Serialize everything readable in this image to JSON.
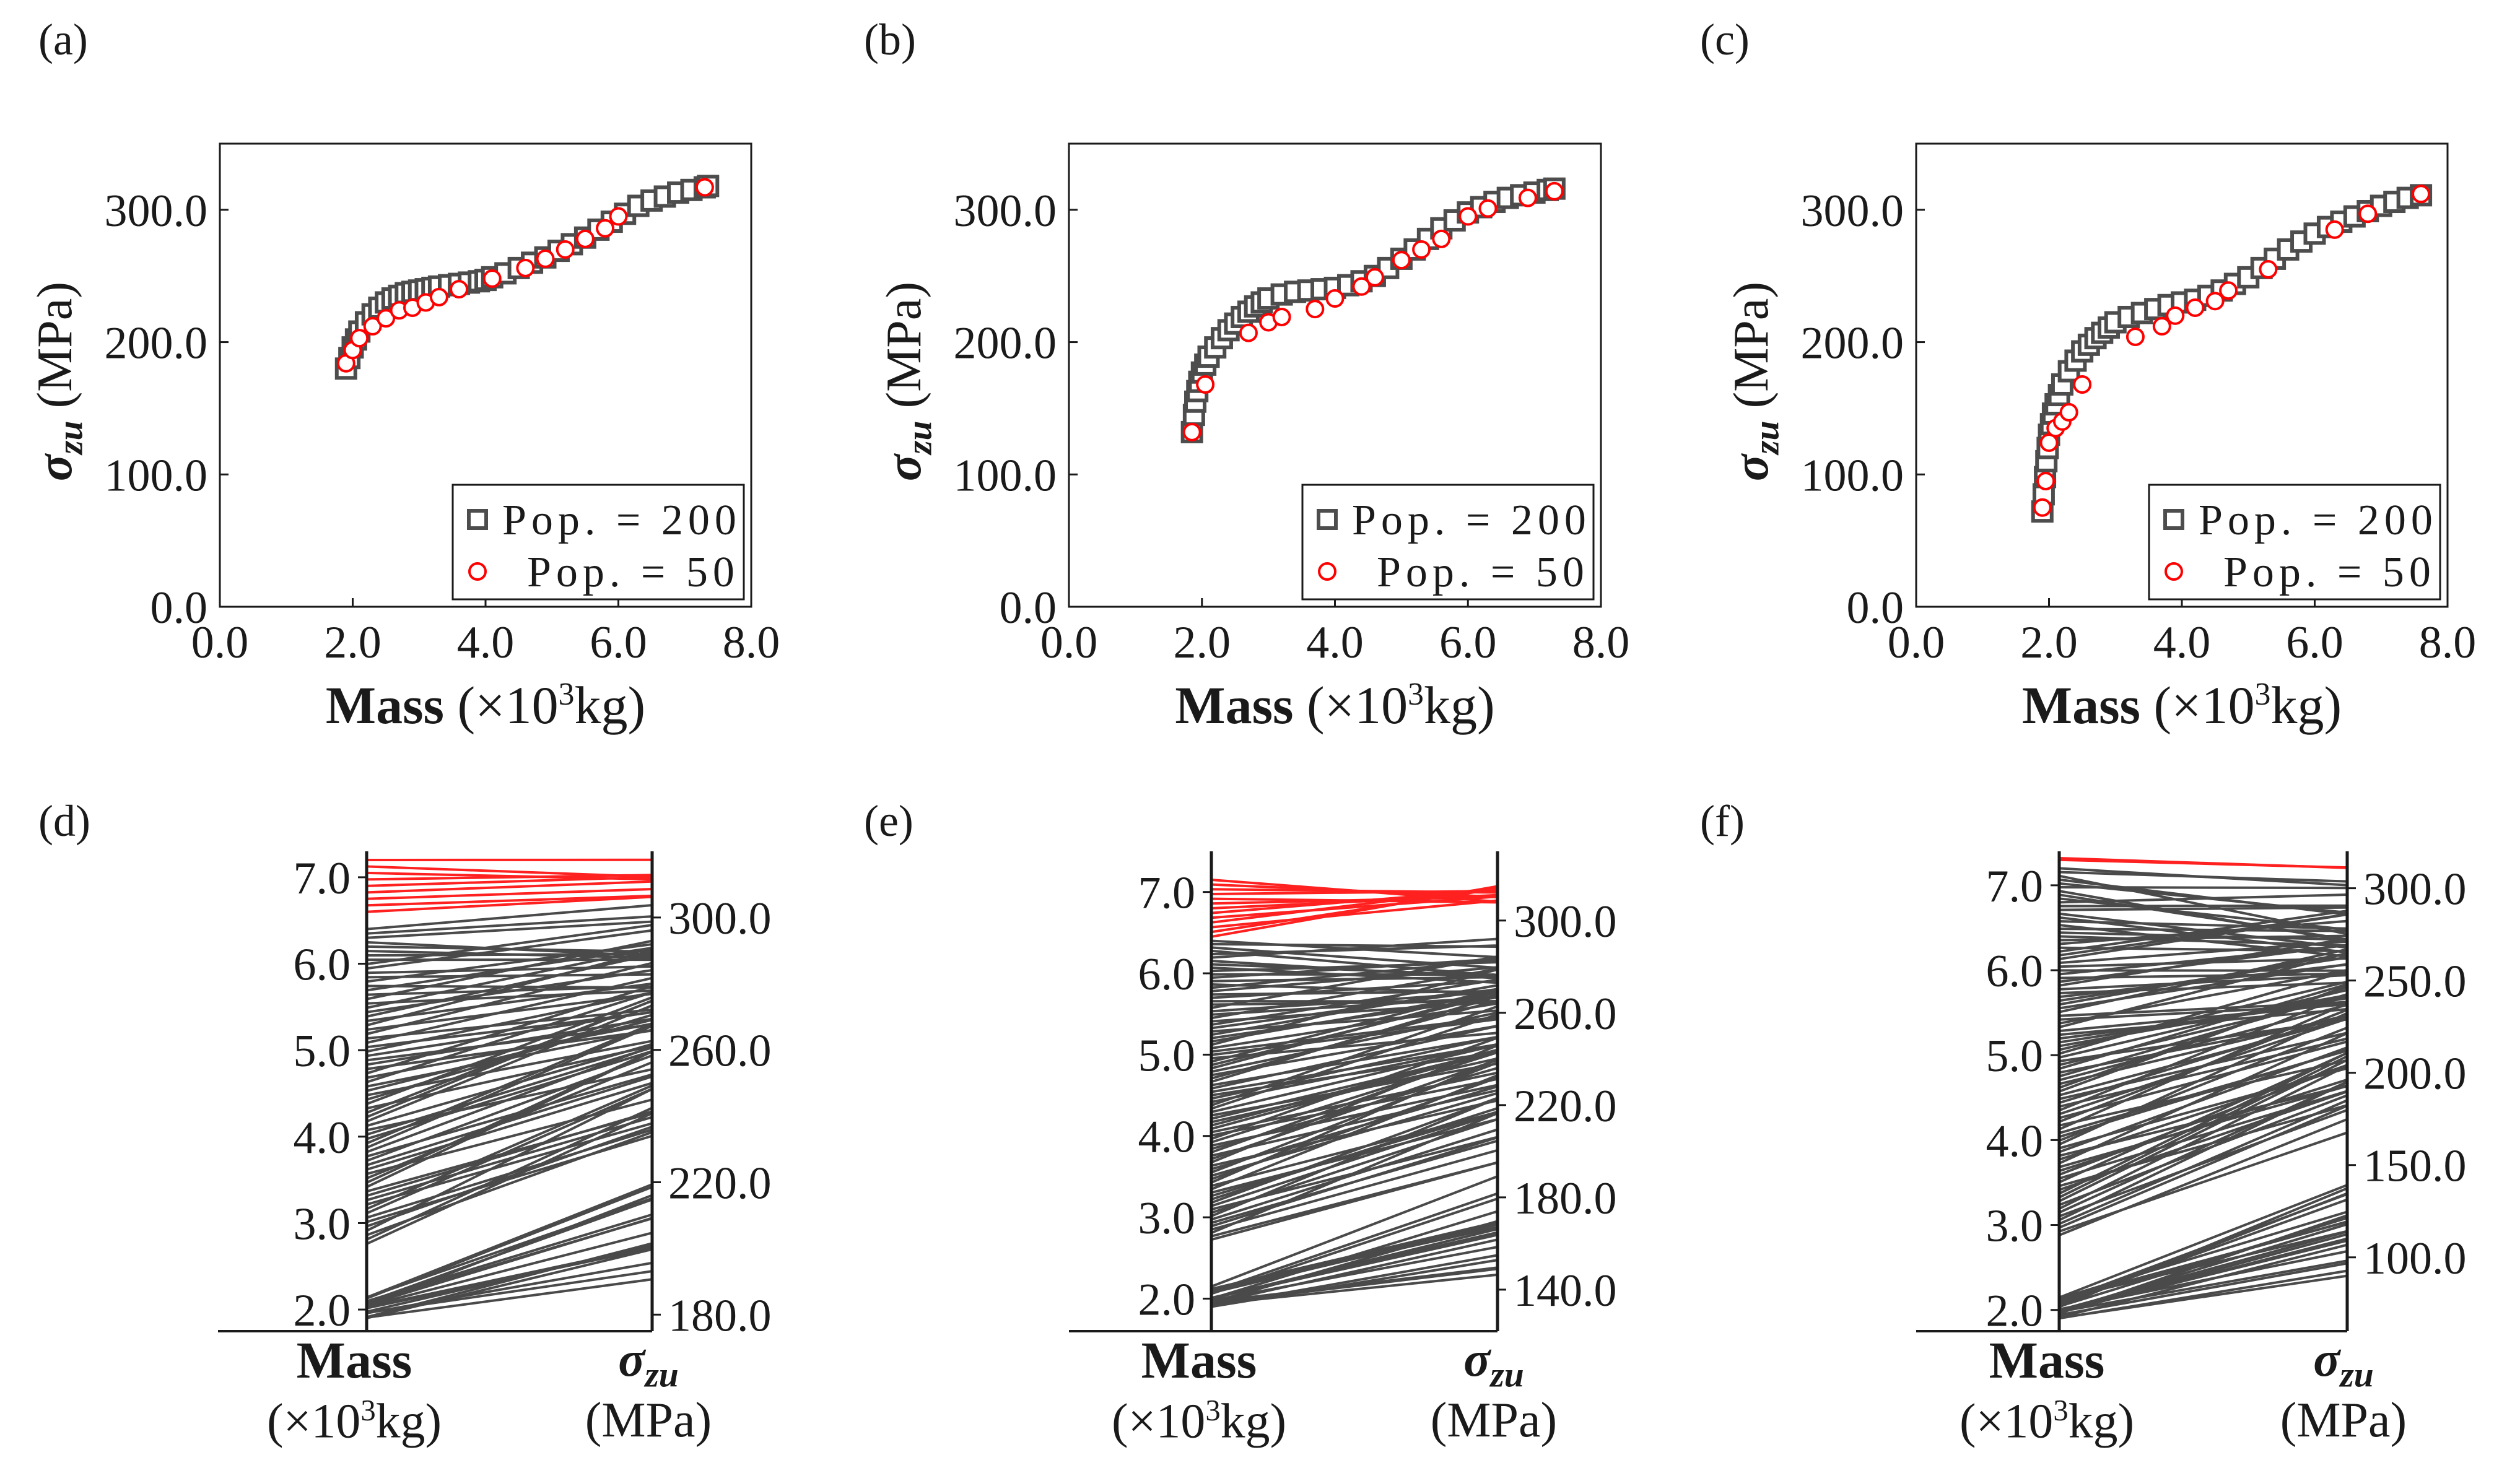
{
  "figure": {
    "colors": {
      "pop200": "#4d4d4d",
      "pop50": "#ff0000",
      "axis": "#1a1a1a",
      "pareto": "#ff2020",
      "lines": "#4a4a4a"
    }
  },
  "chart_data": [
    {
      "id": "a",
      "panel_label": "(a)",
      "type": "scatter",
      "xlabel_bold": "Mass",
      "xlabel_unit": "(×10³kg)",
      "ylabel_symbol": "σzu",
      "ylabel_unit": "(MPa)",
      "xlim": [
        0.0,
        8.0
      ],
      "ylim": [
        0.0,
        350.0
      ],
      "xticks": [
        "0.0",
        "2.0",
        "4.0",
        "6.0",
        "8.0"
      ],
      "yticks": [
        "0.0",
        "100.0",
        "200.0",
        "300.0"
      ],
      "legend_position": "bottom-right",
      "series": [
        {
          "name": "Pop. = 200",
          "marker": "square",
          "x": [
            1.9,
            1.95,
            2.0,
            2.05,
            2.1,
            2.2,
            2.3,
            2.4,
            2.5,
            2.6,
            2.7,
            2.8,
            2.9,
            3.0,
            3.1,
            3.2,
            3.3,
            3.45,
            3.6,
            3.75,
            3.9,
            4.0,
            4.1,
            4.3,
            4.5,
            4.7,
            4.9,
            5.1,
            5.3,
            5.5,
            5.7,
            5.9,
            6.1,
            6.3,
            6.5,
            6.7,
            6.9,
            7.1,
            7.3,
            7.35
          ],
          "y": [
            180,
            188,
            196,
            202,
            208,
            215,
            221,
            226,
            230,
            233,
            235,
            237,
            238,
            239,
            240,
            241,
            242,
            243,
            244,
            245,
            246,
            247,
            249,
            252,
            256,
            260,
            264,
            269,
            274,
            279,
            285,
            291,
            297,
            303,
            307,
            310,
            313,
            315,
            317,
            318
          ]
        },
        {
          "name": "Pop. = 50",
          "marker": "circle",
          "x": [
            1.9,
            2.0,
            2.1,
            2.3,
            2.5,
            2.7,
            2.9,
            3.1,
            3.3,
            3.6,
            4.1,
            4.6,
            4.9,
            5.2,
            5.5,
            5.8,
            6.0,
            7.3
          ],
          "y": [
            184,
            194,
            203,
            212,
            218,
            224,
            226,
            230,
            234,
            240,
            248,
            256,
            263,
            270,
            278,
            286,
            295,
            317
          ]
        }
      ]
    },
    {
      "id": "b",
      "panel_label": "(b)",
      "type": "scatter",
      "xlabel_bold": "Mass",
      "xlabel_unit": "(×10³kg)",
      "ylabel_symbol": "σzu",
      "ylabel_unit": "(MPa)",
      "xlim": [
        0.0,
        8.0
      ],
      "ylim": [
        0.0,
        350.0
      ],
      "xticks": [
        "0.0",
        "2.0",
        "4.0",
        "6.0",
        "8.0"
      ],
      "yticks": [
        "0.0",
        "100.0",
        "200.0",
        "300.0"
      ],
      "legend_position": "bottom-right",
      "series": [
        {
          "name": "Pop. = 200",
          "marker": "square",
          "x": [
            1.85,
            1.88,
            1.9,
            1.93,
            1.96,
            2.0,
            2.05,
            2.1,
            2.2,
            2.3,
            2.4,
            2.5,
            2.6,
            2.7,
            2.8,
            2.9,
            3.0,
            3.2,
            3.4,
            3.6,
            3.8,
            4.0,
            4.2,
            4.4,
            4.6,
            4.8,
            5.0,
            5.2,
            5.4,
            5.6,
            5.8,
            6.0,
            6.2,
            6.4,
            6.6,
            6.8,
            7.0,
            7.2,
            7.3
          ],
          "y": [
            132,
            145,
            155,
            163,
            170,
            177,
            183,
            189,
            196,
            203,
            209,
            214,
            219,
            223,
            227,
            230,
            233,
            236,
            238,
            239,
            240,
            241,
            243,
            246,
            250,
            256,
            263,
            270,
            278,
            286,
            292,
            298,
            302,
            306,
            309,
            311,
            313,
            315,
            316
          ]
        },
        {
          "name": "Pop. = 50",
          "marker": "circle",
          "x": [
            1.85,
            2.05,
            2.7,
            3.0,
            3.2,
            3.7,
            4.0,
            4.4,
            4.6,
            5.0,
            5.3,
            5.6,
            6.0,
            6.3,
            6.9,
            7.3
          ],
          "y": [
            132,
            168,
            207,
            215,
            219,
            225,
            233,
            242,
            249,
            262,
            270,
            278,
            295,
            301,
            309,
            314
          ]
        }
      ]
    },
    {
      "id": "c",
      "panel_label": "(c)",
      "type": "scatter",
      "xlabel_bold": "Mass",
      "xlabel_unit": "(×10³kg)",
      "ylabel_symbol": "σzu",
      "ylabel_unit": "(MPa)",
      "xlim": [
        0.0,
        8.0
      ],
      "ylim": [
        0.0,
        350.0
      ],
      "xticks": [
        "0.0",
        "2.0",
        "4.0",
        "6.0",
        "8.0"
      ],
      "yticks": [
        "0.0",
        "100.0",
        "200.0",
        "300.0"
      ],
      "legend_position": "bottom-right",
      "series": [
        {
          "name": "Pop. = 200",
          "marker": "square",
          "x": [
            1.9,
            1.92,
            1.94,
            1.96,
            1.98,
            2.0,
            2.03,
            2.06,
            2.1,
            2.15,
            2.2,
            2.3,
            2.4,
            2.5,
            2.6,
            2.7,
            2.8,
            2.9,
            3.0,
            3.2,
            3.4,
            3.6,
            3.8,
            4.0,
            4.2,
            4.4,
            4.6,
            4.8,
            5.0,
            5.2,
            5.4,
            5.6,
            5.8,
            6.0,
            6.2,
            6.4,
            6.6,
            6.8,
            7.0,
            7.2,
            7.4,
            7.6
          ],
          "y": [
            72,
            85,
            98,
            110,
            120,
            130,
            138,
            146,
            153,
            160,
            168,
            178,
            186,
            193,
            198,
            203,
            207,
            211,
            215,
            219,
            222,
            225,
            228,
            230,
            232,
            235,
            239,
            244,
            249,
            256,
            263,
            270,
            276,
            282,
            287,
            291,
            295,
            299,
            303,
            306,
            309,
            311
          ]
        },
        {
          "name": "Pop. = 50",
          "marker": "circle",
          "x": [
            1.9,
            1.95,
            2.0,
            2.1,
            2.2,
            2.3,
            2.5,
            3.3,
            3.7,
            3.9,
            4.2,
            4.5,
            4.7,
            5.3,
            6.3,
            6.8,
            7.6
          ],
          "y": [
            75,
            95,
            124,
            135,
            140,
            147,
            168,
            204,
            212,
            220,
            226,
            231,
            239,
            255,
            285,
            297,
            312
          ]
        }
      ]
    },
    {
      "id": "d",
      "panel_label": "(d)",
      "type": "parallel-coordinates",
      "axes": [
        {
          "label_bold": "Mass",
          "label_unit": "(×10³kg)",
          "range": [
            1.75,
            7.3
          ],
          "ticks": [
            "2.0",
            "3.0",
            "4.0",
            "5.0",
            "6.0",
            "7.0"
          ],
          "tick_side": "left"
        },
        {
          "label_symbol": "σzu",
          "label_unit": "(MPa)",
          "range": [
            175,
            320
          ],
          "ticks": [
            "180.0",
            "220.0",
            "260.0",
            "300.0"
          ],
          "tick_side": "right"
        }
      ],
      "line_count": 90,
      "highlight_count": 9,
      "gray_mass_range": [
        1.9,
        6.4
      ],
      "gray_stress_range": [
        180,
        305
      ],
      "red_mass_range": [
        6.6,
        7.2
      ],
      "red_stress_range": [
        306,
        318
      ]
    },
    {
      "id": "e",
      "panel_label": "(e)",
      "type": "parallel-coordinates",
      "axes": [
        {
          "label_bold": "Mass",
          "label_unit": "(×10³kg)",
          "range": [
            1.6,
            7.5
          ],
          "ticks": [
            "2.0",
            "3.0",
            "4.0",
            "5.0",
            "6.0",
            "7.0"
          ],
          "tick_side": "left"
        },
        {
          "label_symbol": "σzu",
          "label_unit": "(MPa)",
          "range": [
            122,
            330
          ],
          "ticks": [
            "140.0",
            "180.0",
            "220.0",
            "260.0",
            "300.0"
          ],
          "tick_side": "right"
        }
      ],
      "line_count": 110,
      "highlight_count": 13,
      "gray_mass_range": [
        1.9,
        6.4
      ],
      "gray_stress_range": [
        132,
        301
      ],
      "red_mass_range": [
        6.45,
        7.15
      ],
      "red_stress_range": [
        305,
        315
      ]
    },
    {
      "id": "f",
      "panel_label": "(f)",
      "type": "parallel-coordinates",
      "axes": [
        {
          "label_bold": "Mass",
          "label_unit": "(×10³kg)",
          "range": [
            1.75,
            7.4
          ],
          "ticks": [
            "2.0",
            "3.0",
            "4.0",
            "5.0",
            "6.0",
            "7.0"
          ],
          "tick_side": "left"
        },
        {
          "label_symbol": "σzu",
          "label_unit": "(MPa)",
          "range": [
            60,
            320
          ],
          "ticks": [
            "100.0",
            "150.0",
            "200.0",
            "250.0",
            "300.0"
          ],
          "tick_side": "right"
        }
      ],
      "line_count": 120,
      "highlight_count": 2,
      "gray_mass_range": [
        1.9,
        7.2
      ],
      "gray_stress_range": [
        72,
        309
      ],
      "red_mass_range": [
        7.3,
        7.32
      ],
      "red_stress_range": [
        311,
        312
      ]
    }
  ]
}
